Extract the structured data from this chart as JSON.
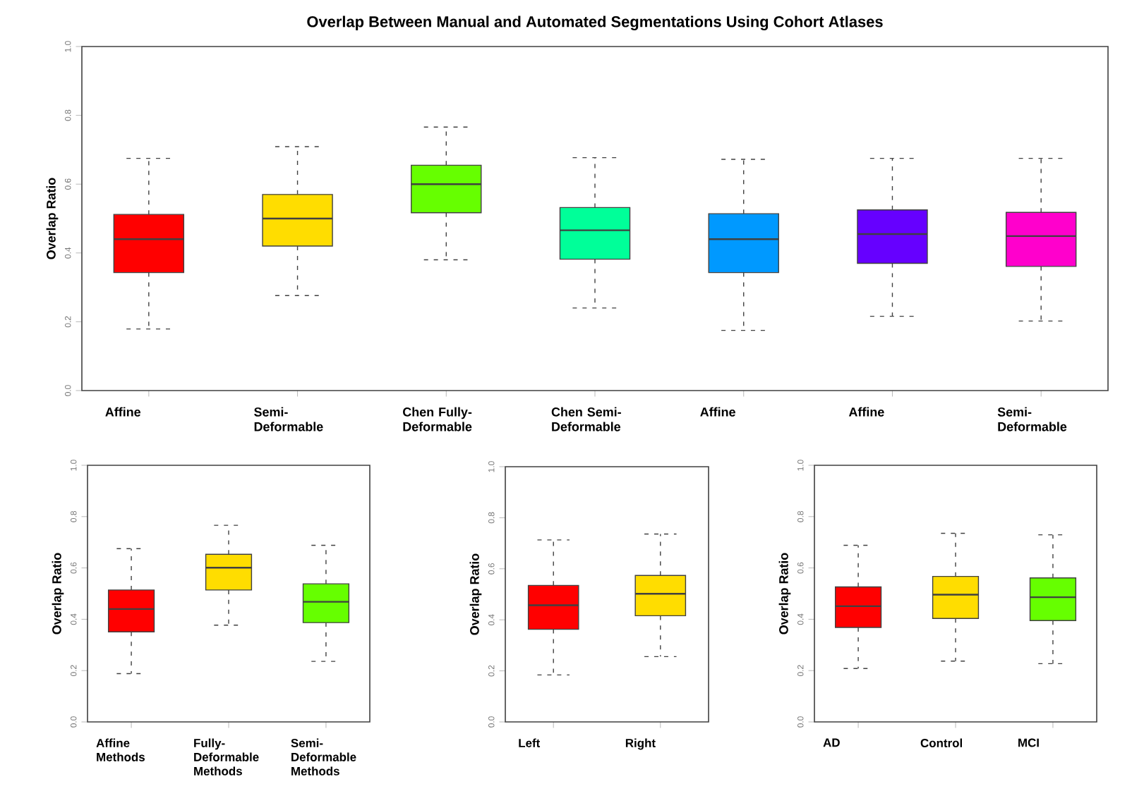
{
  "chart_data": [
    {
      "type": "box",
      "title": "Overlap Between Manual and Automated Segmentations Using Cohort Atlases",
      "ylabel": "Overlap Ratio",
      "categories": [
        "Affine",
        "Semi-Deformable",
        "Chen Fully-Deformable",
        "Chen Semi-Deformable",
        "Affine",
        "Affine",
        "Semi-Deformable"
      ],
      "colors": [
        "#ff0000",
        "#ffdd00",
        "#66ff00",
        "#00ff99",
        "#0099ff",
        "#6600ff",
        "#ff00cc"
      ],
      "boxes": [
        {
          "low": 0.179,
          "q1": 0.343,
          "median": 0.44,
          "q3": 0.512,
          "high": 0.675
        },
        {
          "low": 0.276,
          "q1": 0.42,
          "median": 0.5,
          "q3": 0.57,
          "high": 0.709
        },
        {
          "low": 0.38,
          "q1": 0.517,
          "median": 0.6,
          "q3": 0.655,
          "high": 0.766
        },
        {
          "low": 0.24,
          "q1": 0.382,
          "median": 0.466,
          "q3": 0.532,
          "high": 0.677
        },
        {
          "low": 0.175,
          "q1": 0.343,
          "median": 0.44,
          "q3": 0.514,
          "high": 0.672
        },
        {
          "low": 0.216,
          "q1": 0.37,
          "median": 0.455,
          "q3": 0.525,
          "high": 0.675
        },
        {
          "low": 0.202,
          "q1": 0.361,
          "median": 0.449,
          "q3": 0.518,
          "high": 0.675
        }
      ],
      "ylim": [
        0,
        1
      ],
      "yticks": [
        {
          "value": 0,
          "label": "0.0"
        },
        {
          "value": 0.2,
          "label": "0.2"
        },
        {
          "value": 0.4,
          "label": "0.4"
        },
        {
          "value": 0.6,
          "label": "0.6"
        },
        {
          "value": 0.8,
          "label": "0.8"
        },
        {
          "value": 1,
          "label": "1.0"
        }
      ]
    },
    {
      "type": "box",
      "ylabel": "Overlap Ratio",
      "categories": [
        "Affine Methods",
        "Fully-Deformable Methods",
        "Semi-Deformable Methods"
      ],
      "colors": [
        "#ff0000",
        "#ffdd00",
        "#66ff00"
      ],
      "boxes": [
        {
          "low": 0.188,
          "q1": 0.351,
          "median": 0.44,
          "q3": 0.514,
          "high": 0.675
        },
        {
          "low": 0.377,
          "q1": 0.514,
          "median": 0.601,
          "q3": 0.653,
          "high": 0.766
        },
        {
          "low": 0.236,
          "q1": 0.387,
          "median": 0.468,
          "q3": 0.538,
          "high": 0.688
        }
      ],
      "ylim": [
        0,
        1
      ],
      "yticks": [
        {
          "value": 0,
          "label": "0.0"
        },
        {
          "value": 0.2,
          "label": "0.2"
        },
        {
          "value": 0.4,
          "label": "0.4"
        },
        {
          "value": 0.6,
          "label": "0.6"
        },
        {
          "value": 0.8,
          "label": "0.8"
        },
        {
          "value": 1,
          "label": "1.0"
        }
      ]
    },
    {
      "type": "box",
      "ylabel": "Overlap Ratio",
      "categories": [
        "Left",
        "Right"
      ],
      "colors": [
        "#ff0000",
        "#ffdd00"
      ],
      "boxes": [
        {
          "low": 0.184,
          "q1": 0.363,
          "median": 0.457,
          "q3": 0.535,
          "high": 0.713
        },
        {
          "low": 0.256,
          "q1": 0.416,
          "median": 0.502,
          "q3": 0.574,
          "high": 0.736
        }
      ],
      "ylim": [
        0,
        1
      ],
      "yticks": [
        {
          "value": 0,
          "label": "0.0"
        },
        {
          "value": 0.2,
          "label": "0.2"
        },
        {
          "value": 0.4,
          "label": "0.4"
        },
        {
          "value": 0.6,
          "label": "0.6"
        },
        {
          "value": 0.8,
          "label": "0.8"
        },
        {
          "value": 1,
          "label": "1.0"
        }
      ]
    },
    {
      "type": "box",
      "ylabel": "Overlap Ratio",
      "categories": [
        "AD",
        "Control",
        "MCI"
      ],
      "colors": [
        "#ff0000",
        "#ffdd00",
        "#66ff00"
      ],
      "boxes": [
        {
          "low": 0.208,
          "q1": 0.368,
          "median": 0.451,
          "q3": 0.526,
          "high": 0.688
        },
        {
          "low": 0.237,
          "q1": 0.403,
          "median": 0.496,
          "q3": 0.567,
          "high": 0.735
        },
        {
          "low": 0.227,
          "q1": 0.395,
          "median": 0.486,
          "q3": 0.561,
          "high": 0.729
        }
      ],
      "ylim": [
        0,
        1
      ],
      "yticks": [
        {
          "value": 0,
          "label": "0.0"
        },
        {
          "value": 0.2,
          "label": "0.2"
        },
        {
          "value": 0.4,
          "label": "0.4"
        },
        {
          "value": 0.6,
          "label": "0.6"
        },
        {
          "value": 0.8,
          "label": "0.8"
        },
        {
          "value": 1,
          "label": "1.0"
        }
      ]
    }
  ]
}
